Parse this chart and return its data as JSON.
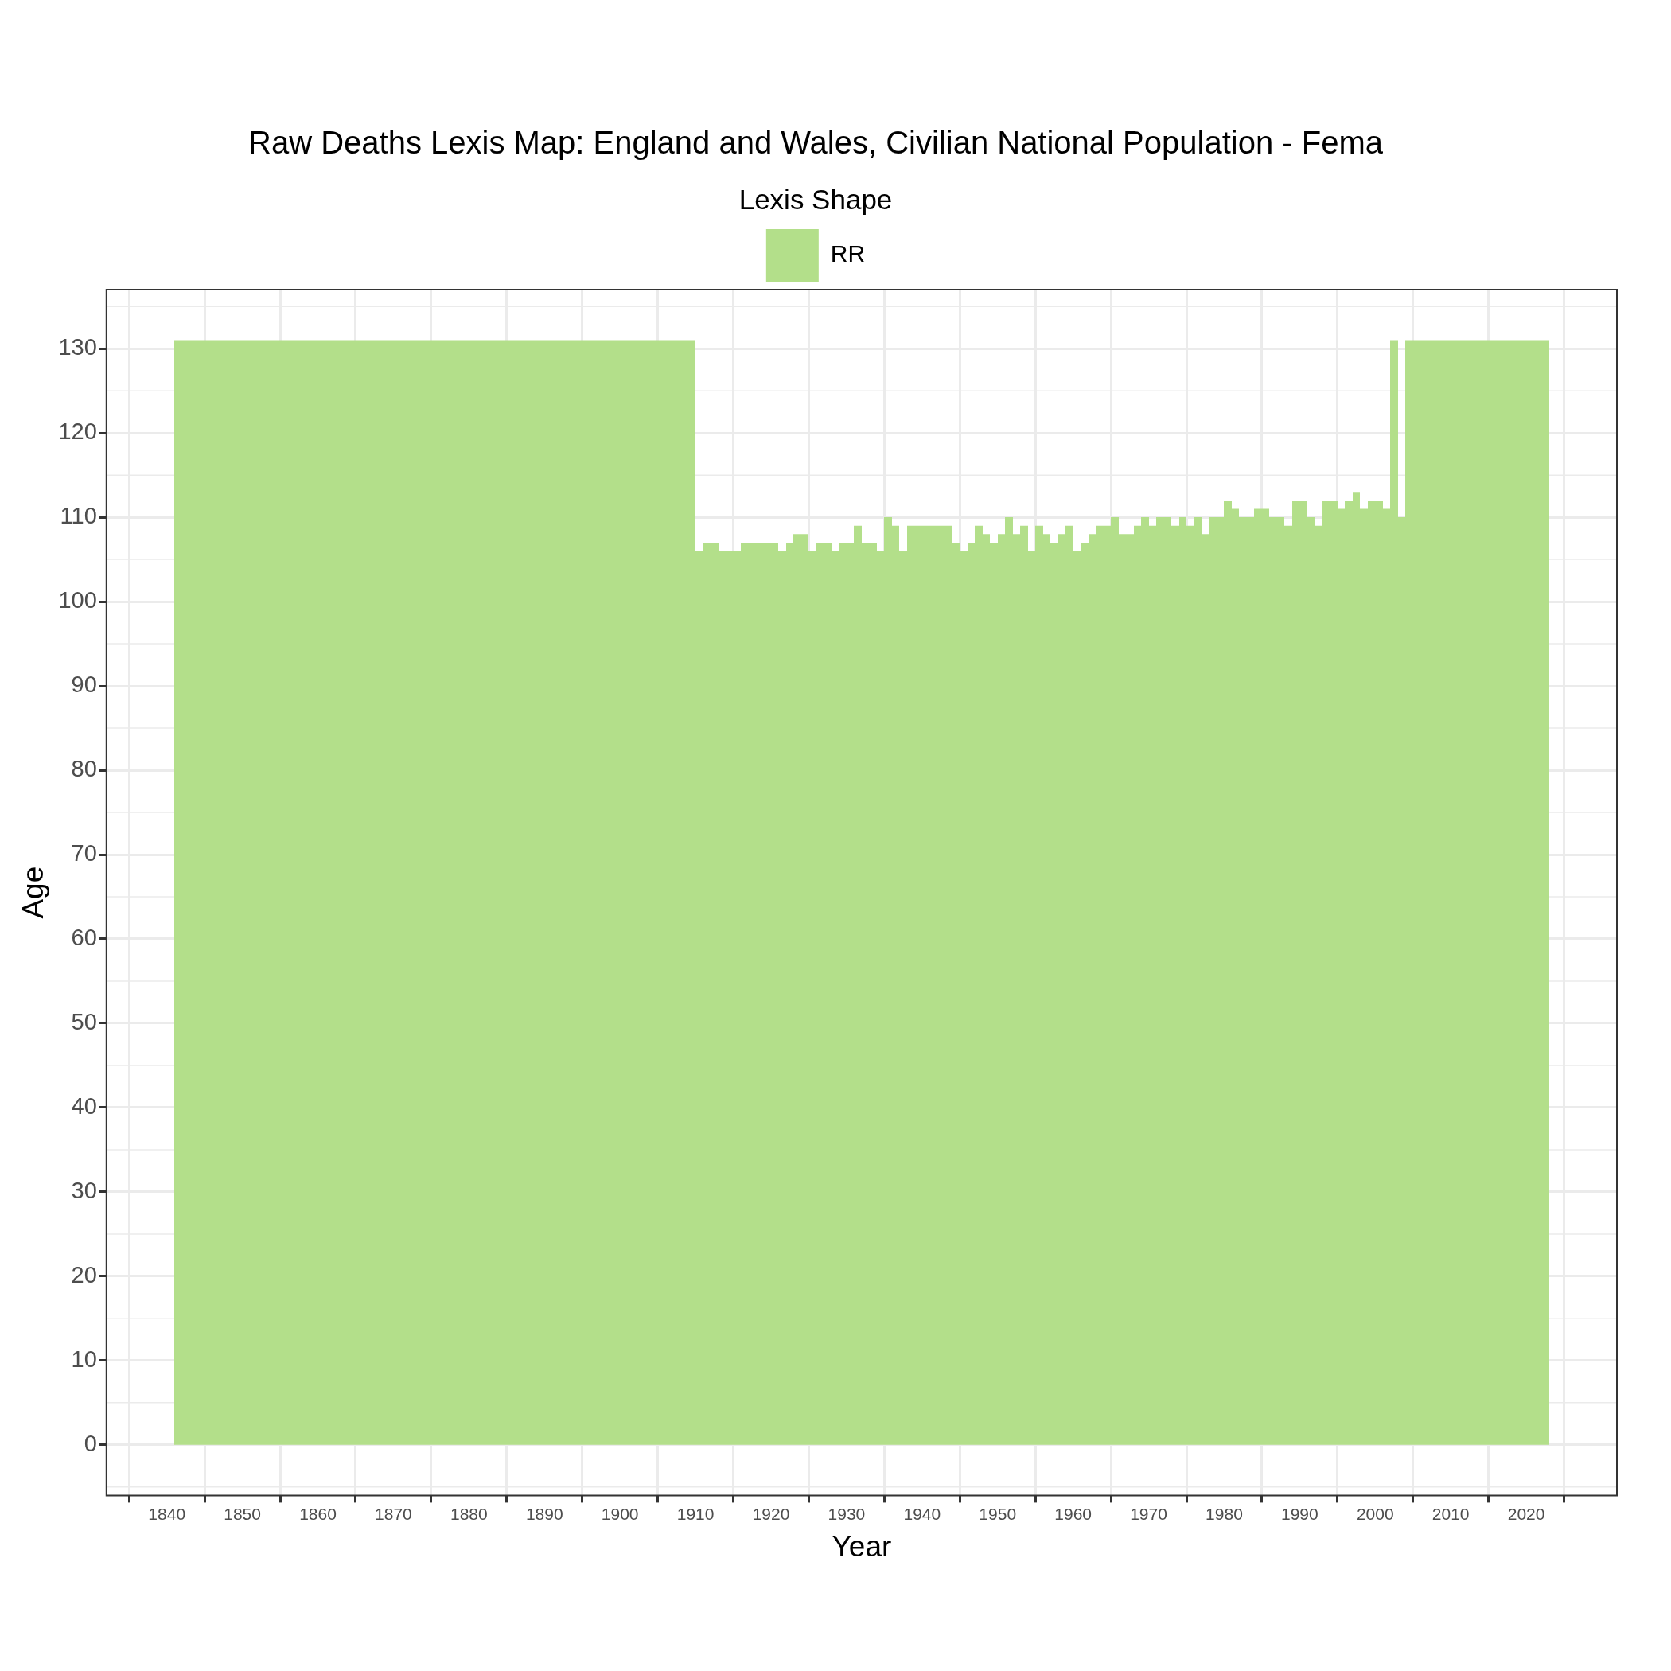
{
  "chart_data": {
    "type": "histogram",
    "title": "Raw Deaths Lexis Map: England and Wales, Civilian National Population - Fema",
    "xlabel": "Year",
    "ylabel": "Age",
    "legend_title": "Lexis Shape",
    "legend": "top",
    "grid": true,
    "xlim": [
      1832,
      2032
    ],
    "xticks": [
      1840,
      1850,
      1860,
      1870,
      1880,
      1890,
      1900,
      1910,
      1920,
      1930,
      1940,
      1950,
      1960,
      1970,
      1980,
      1990,
      2000,
      2010,
      2020
    ],
    "ylim": [
      -6,
      137
    ],
    "yticks": [
      0,
      10,
      20,
      30,
      40,
      50,
      60,
      70,
      80,
      90,
      100,
      110,
      120,
      130
    ],
    "bins": [
      1841,
      1910,
      1911,
      1913,
      1916,
      1921,
      1922,
      1923,
      1925,
      1926,
      1928,
      1929,
      1931,
      1932,
      1934,
      1935,
      1936,
      1937,
      1938,
      1944,
      1945,
      1946,
      1947,
      1948,
      1949,
      1950,
      1951,
      1952,
      1953,
      1954,
      1955,
      1956,
      1957,
      1958,
      1959,
      1960,
      1961,
      1962,
      1963,
      1965,
      1966,
      1968,
      1969,
      1970,
      1971,
      1973,
      1974,
      1975,
      1976,
      1977,
      1978,
      1980,
      1981,
      1982,
      1984,
      1986,
      1988,
      1989,
      1991,
      1992,
      1993,
      1995,
      1996,
      1997,
      1998,
      1999,
      2001,
      2002,
      2003,
      2004,
      2023
    ],
    "series": [
      {
        "name": "RR",
        "color": "#b3df8a",
        "values": [
          131,
          106,
          107,
          106,
          107,
          106,
          107,
          108,
          106,
          107,
          106,
          107,
          109,
          107,
          106,
          110,
          109,
          106,
          109,
          107,
          106,
          107,
          109,
          108,
          107,
          108,
          110,
          108,
          109,
          106,
          109,
          108,
          107,
          108,
          109,
          106,
          107,
          108,
          109,
          110,
          108,
          109,
          110,
          109,
          110,
          109,
          110,
          109,
          110,
          108,
          110,
          112,
          111,
          110,
          111,
          110,
          109,
          112,
          110,
          109,
          112,
          111,
          112,
          113,
          111,
          112,
          111,
          131,
          110,
          131
        ]
      }
    ]
  }
}
